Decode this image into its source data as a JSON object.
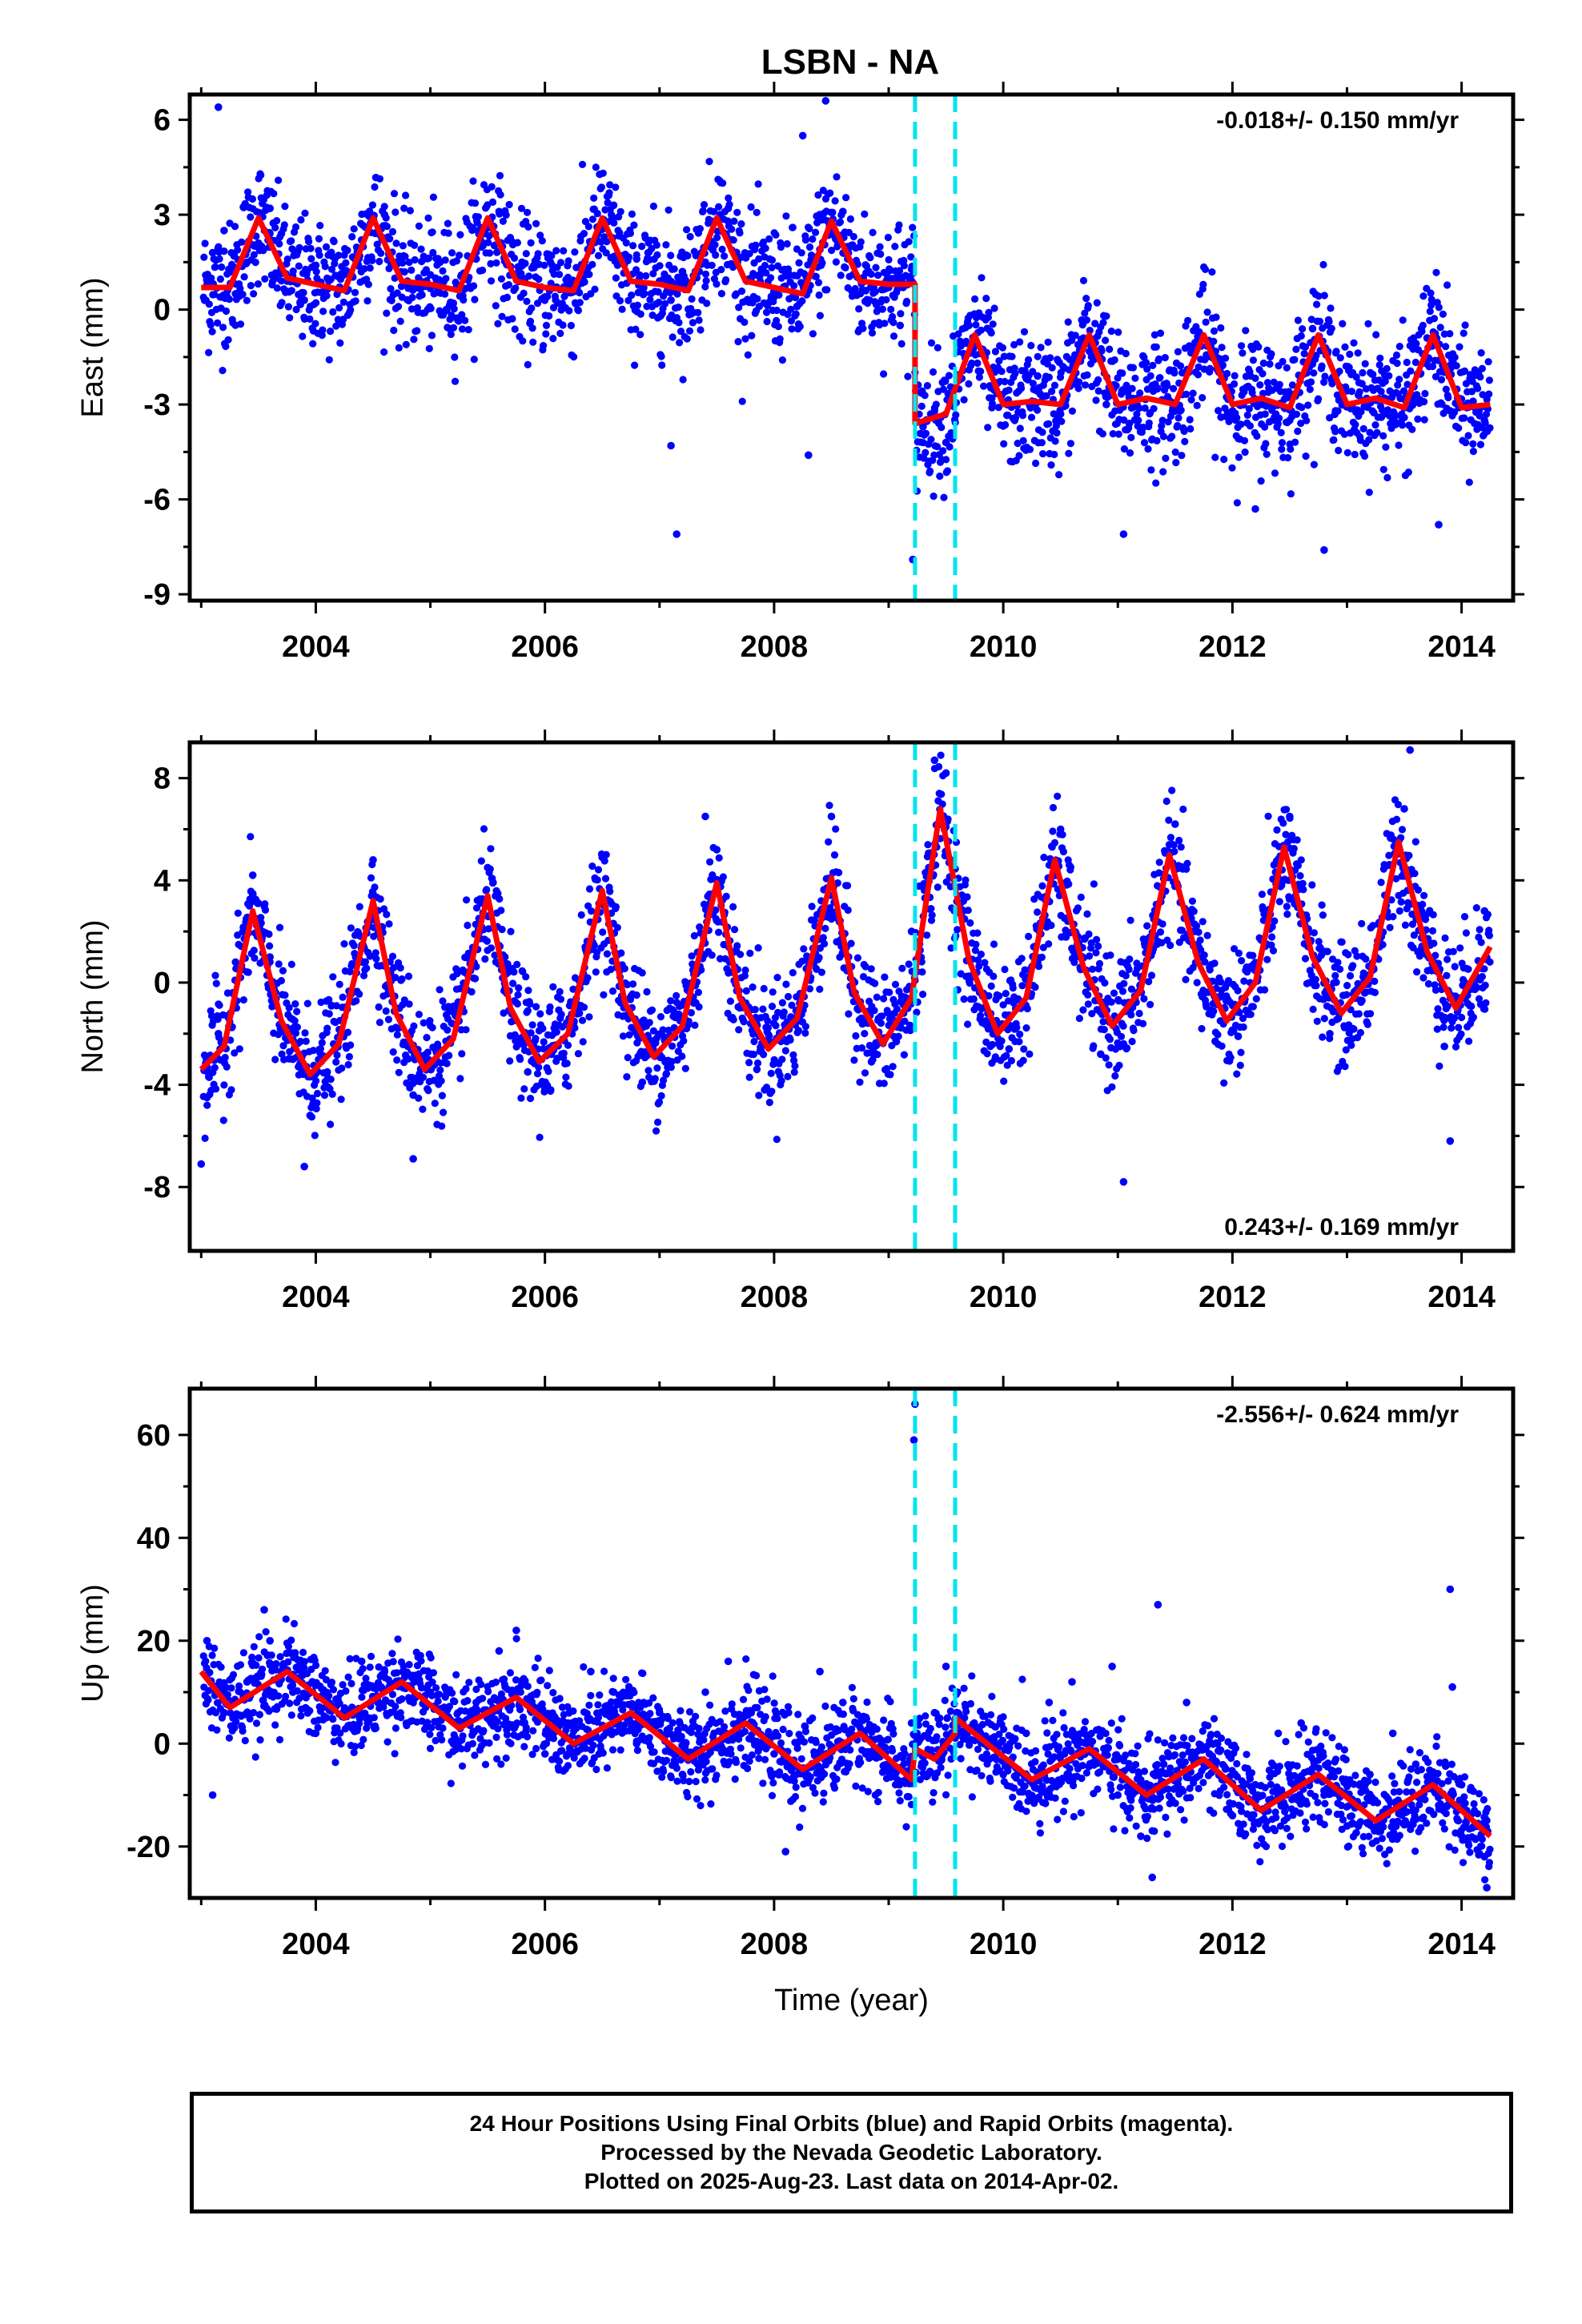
{
  "title": "LSBN - NA",
  "colors": {
    "points": "#0000ff",
    "model": "#ff0000",
    "offsets": "#00e5ee",
    "frame": "#000000"
  },
  "chart_data": [
    {
      "type": "scatter",
      "panel": "east",
      "ylabel": "East (mm)",
      "xlim": [
        2002.9,
        2014.45
      ],
      "ylim": [
        -9.2,
        6.8
      ],
      "yticks": [
        -9,
        -6,
        -3,
        0,
        3,
        6
      ],
      "xticks": [
        2004,
        2006,
        2008,
        2010,
        2012,
        2014
      ],
      "rate_label": "-0.018+/- 0.150 mm/yr",
      "rate_position": "top-right",
      "offset_epochs": [
        2009.23,
        2009.58
      ],
      "series": [
        {
          "name": "",
          "kind": "points",
          "color": "#0000ff"
        },
        {
          "name": "",
          "kind": "model",
          "color": "#ff0000",
          "x": [
            2003.0,
            2003.25,
            2003.5,
            2003.75,
            2004.0,
            2004.25,
            2004.5,
            2004.75,
            2005.0,
            2005.25,
            2005.5,
            2005.75,
            2006.0,
            2006.25,
            2006.5,
            2006.75,
            2007.0,
            2007.25,
            2007.5,
            2007.75,
            2008.0,
            2008.25,
            2008.5,
            2008.75,
            2009.0,
            2009.23,
            2009.23,
            2009.5,
            2009.75,
            2010.0,
            2010.25,
            2010.5,
            2010.75,
            2011.0,
            2011.25,
            2011.5,
            2011.75,
            2012.0,
            2012.25,
            2012.5,
            2012.75,
            2013.0,
            2013.25,
            2013.5,
            2013.75,
            2014.0,
            2014.25
          ],
          "y": [
            0.7,
            0.7,
            2.9,
            1.0,
            0.8,
            0.6,
            2.9,
            0.9,
            0.8,
            0.6,
            2.9,
            0.9,
            0.7,
            0.6,
            2.9,
            0.9,
            0.8,
            0.6,
            2.9,
            0.9,
            0.7,
            0.5,
            2.8,
            0.9,
            0.8,
            0.8,
            -3.6,
            -3.3,
            -0.8,
            -3.0,
            -2.9,
            -3.0,
            -0.8,
            -3.0,
            -2.8,
            -3.0,
            -0.8,
            -3.0,
            -2.8,
            -3.1,
            -0.8,
            -3.0,
            -2.8,
            -3.1,
            -0.8,
            -3.1,
            -3.0
          ]
        }
      ],
      "scatter": {
        "x": [
          2003.1,
          2003.2,
          2003.3,
          2003.4,
          2003.5,
          2003.6,
          2003.7,
          2003.8,
          2003.9,
          2004.0,
          2004.2,
          2004.4,
          2004.6,
          2004.8,
          2005.0,
          2005.2,
          2005.4,
          2005.6,
          2005.8,
          2006.0,
          2006.2,
          2006.4,
          2006.6,
          2006.8,
          2007.0,
          2007.1,
          2007.2,
          2007.4,
          2007.6,
          2007.8,
          2008.0,
          2008.2,
          2008.4,
          2008.6,
          2008.8,
          2009.0,
          2009.1,
          2009.2,
          2009.3,
          2009.4,
          2009.5,
          2009.7,
          2009.9,
          2010.1,
          2010.3,
          2010.5,
          2010.7,
          2010.9,
          2011.1,
          2011.3,
          2011.5,
          2011.7,
          2011.9,
          2012.1,
          2012.3,
          2012.5,
          2012.7,
          2012.9,
          2013.1,
          2013.3,
          2013.5,
          2013.7,
          2013.9,
          2014.1,
          2014.2,
          2003.15,
          2007.1,
          2007.15,
          2008.3,
          2008.45,
          2008.25,
          2009.21,
          2011.05,
          2012.8,
          2012.2,
          2013.8
        ],
        "y": [
          1.8,
          2.5,
          0.5,
          1.5,
          2.1,
          3.2,
          2.4,
          1.0,
          0.3,
          1.4,
          0.6,
          2.2,
          3.0,
          0.9,
          1.1,
          0.2,
          1.6,
          3.1,
          1.5,
          0.4,
          0.8,
          2.0,
          3.3,
          1.6,
          0.9,
          0.3,
          1.2,
          1.5,
          3.2,
          1.0,
          0.4,
          0.1,
          1.9,
          3.1,
          0.6,
          0.7,
          -0.5,
          0.9,
          -3.7,
          -3.2,
          -4.2,
          -0.5,
          -2.8,
          -3.5,
          -2.1,
          -3.3,
          -0.9,
          -3.0,
          -3.6,
          -2.4,
          -3.1,
          -0.7,
          -3.4,
          -2.6,
          -3.0,
          -3.5,
          -0.6,
          -3.2,
          -2.7,
          -3.4,
          -3.1,
          -0.9,
          -3.2,
          -2.9,
          -3.5,
          6.4,
          -4.3,
          -7.1,
          -4.6,
          6.6,
          5.5,
          -7.9,
          -7.1,
          -7.6,
          -6.3,
          -6.8
        ]
      }
    },
    {
      "type": "scatter",
      "panel": "north",
      "ylabel": "North (mm)",
      "xlim": [
        2002.9,
        2014.45
      ],
      "ylim": [
        -10.5,
        9.4
      ],
      "yticks": [
        -8,
        -4,
        0,
        4,
        8
      ],
      "xticks": [
        2004,
        2006,
        2008,
        2010,
        2012,
        2014
      ],
      "rate_label": "0.243+/- 0.169 mm/yr",
      "rate_position": "bottom-right",
      "offset_epochs": [
        2009.23,
        2009.58
      ],
      "series": [
        {
          "name": "",
          "kind": "points",
          "color": "#0000ff"
        },
        {
          "name": "",
          "kind": "model",
          "color": "#ff0000",
          "x": [
            2003.0,
            2003.2,
            2003.45,
            2003.7,
            2003.95,
            2004.2,
            2004.5,
            2004.7,
            2004.95,
            2005.2,
            2005.5,
            2005.7,
            2005.95,
            2006.2,
            2006.5,
            2006.7,
            2006.95,
            2007.2,
            2007.5,
            2007.7,
            2007.95,
            2008.2,
            2008.5,
            2008.7,
            2008.95,
            2009.2,
            2009.45,
            2009.7,
            2009.95,
            2010.2,
            2010.45,
            2010.7,
            2010.95,
            2011.2,
            2011.45,
            2011.7,
            2011.95,
            2012.2,
            2012.45,
            2012.7,
            2012.95,
            2013.2,
            2013.45,
            2013.7,
            2013.95,
            2014.25
          ],
          "y": [
            -3.4,
            -2.5,
            2.8,
            -1.5,
            -3.6,
            -2.4,
            3.2,
            -1.2,
            -3.4,
            -2.2,
            3.4,
            -1.0,
            -3.1,
            -2.0,
            3.6,
            -0.8,
            -2.9,
            -1.7,
            3.9,
            -0.6,
            -2.6,
            -1.4,
            4.1,
            -0.4,
            -2.4,
            -0.6,
            6.8,
            0.9,
            -2.0,
            -0.6,
            4.8,
            0.6,
            -1.7,
            -0.3,
            5.0,
            0.8,
            -1.5,
            0.0,
            5.3,
            1.0,
            -1.2,
            0.2,
            5.5,
            1.2,
            -1.0,
            1.4
          ]
        }
      ],
      "scatter": {
        "x": [
          2003.05,
          2003.15,
          2003.3,
          2003.45,
          2003.6,
          2003.8,
          2003.95,
          2004.1,
          2004.3,
          2004.5,
          2004.65,
          2004.85,
          2005.05,
          2005.25,
          2005.5,
          2005.65,
          2005.85,
          2006.05,
          2006.3,
          2006.5,
          2006.65,
          2006.85,
          2007.05,
          2007.3,
          2007.5,
          2007.65,
          2007.85,
          2008.05,
          2008.3,
          2008.5,
          2008.65,
          2008.85,
          2009.05,
          2009.2,
          2009.35,
          2009.5,
          2009.65,
          2009.85,
          2010.05,
          2010.3,
          2010.5,
          2010.65,
          2010.85,
          2011.05,
          2011.3,
          2011.5,
          2011.65,
          2011.85,
          2012.05,
          2012.3,
          2012.5,
          2012.65,
          2012.85,
          2013.05,
          2013.3,
          2013.5,
          2013.65,
          2013.85,
          2014.05,
          2014.2,
          2003.0,
          2003.9,
          2004.85,
          2007.4,
          2009.4,
          2011.05,
          2013.55,
          2013.9
        ],
        "y": [
          -4.5,
          -2.0,
          0.8,
          4.2,
          1.0,
          -3.0,
          -5.2,
          -3.5,
          -0.5,
          4.8,
          0.2,
          -4.4,
          -3.0,
          -1.5,
          4.5,
          1.0,
          -3.5,
          -4.2,
          -1.2,
          4.9,
          0.5,
          -3.9,
          -3.1,
          -0.8,
          5.2,
          1.2,
          -3.4,
          -2.0,
          0.4,
          6.5,
          1.0,
          -3.1,
          -1.5,
          2.0,
          4.5,
          8.2,
          2.5,
          -1.5,
          -2.6,
          0.8,
          6.0,
          1.8,
          -2.8,
          -2.4,
          1.2,
          6.2,
          2.0,
          -2.3,
          -2.1,
          1.5,
          6.5,
          2.5,
          -2.0,
          -1.8,
          1.8,
          6.8,
          2.8,
          -2.5,
          -0.5,
          2.8,
          -7.1,
          -7.2,
          -6.9,
          6.5,
          8.7,
          -7.8,
          9.1,
          -6.2
        ]
      }
    },
    {
      "type": "scatter",
      "panel": "up",
      "ylabel": "Up (mm)",
      "xlabel": "Time (year)",
      "xlim": [
        2002.9,
        2014.45
      ],
      "ylim": [
        -30,
        69
      ],
      "yticks": [
        -20,
        0,
        20,
        40,
        60
      ],
      "xticks": [
        2004,
        2006,
        2008,
        2010,
        2012,
        2014
      ],
      "rate_label": "-2.556+/- 0.624 mm/yr",
      "rate_position": "top-right",
      "offset_epochs": [
        2009.23,
        2009.58
      ],
      "series": [
        {
          "name": "",
          "kind": "points",
          "color": "#0000ff"
        },
        {
          "name": "",
          "kind": "model",
          "color": "#ff0000",
          "x": [
            2003.0,
            2003.25,
            2003.75,
            2004.25,
            2004.75,
            2005.25,
            2005.75,
            2006.25,
            2006.75,
            2007.25,
            2007.75,
            2008.25,
            2008.75,
            2009.2,
            2009.23,
            2009.4,
            2009.58,
            2009.58,
            2010.25,
            2010.75,
            2011.25,
            2011.75,
            2012.25,
            2012.75,
            2013.25,
            2013.75,
            2014.25
          ],
          "y": [
            14,
            7,
            14,
            5,
            12,
            3,
            9,
            0,
            6,
            -3,
            4,
            -5,
            2,
            -7,
            -1,
            -3,
            2,
            5,
            -7,
            -1,
            -10,
            -3,
            -13,
            -6,
            -15,
            -8,
            -18
          ]
        }
      ],
      "scatter": {
        "x": [
          2003.05,
          2003.2,
          2003.4,
          2003.6,
          2003.8,
          2004.0,
          2004.2,
          2004.4,
          2004.6,
          2004.8,
          2005.0,
          2005.2,
          2005.4,
          2005.6,
          2005.8,
          2006.0,
          2006.2,
          2006.4,
          2006.6,
          2006.8,
          2007.0,
          2007.2,
          2007.4,
          2007.6,
          2007.8,
          2008.0,
          2008.2,
          2008.4,
          2008.6,
          2008.8,
          2009.0,
          2009.2,
          2009.4,
          2009.6,
          2009.8,
          2010.0,
          2010.2,
          2010.4,
          2010.6,
          2010.8,
          2011.0,
          2011.2,
          2011.4,
          2011.6,
          2011.8,
          2012.0,
          2012.2,
          2012.4,
          2012.6,
          2012.8,
          2013.0,
          2013.2,
          2013.4,
          2013.6,
          2013.8,
          2014.0,
          2014.2,
          2003.1,
          2003.55,
          2005.75,
          2008.1,
          2009.22,
          2009.23,
          2009.5,
          2010.95,
          2011.35,
          2011.3,
          2013.9,
          2013.92,
          2014.22
        ],
        "y": [
          20,
          6,
          12,
          20,
          10,
          2,
          8,
          16,
          14,
          4,
          10,
          0,
          8,
          18,
          12,
          -2,
          4,
          14,
          10,
          0,
          6,
          -6,
          10,
          16,
          6,
          -2,
          0,
          14,
          8,
          -2,
          -4,
          4,
          6,
          10,
          2,
          -6,
          2,
          8,
          12,
          -2,
          -10,
          -18,
          -4,
          8,
          -2,
          -14,
          -8,
          2,
          4,
          -10,
          -16,
          -6,
          2,
          -4,
          -12,
          -8,
          -22,
          -10,
          26,
          22,
          -21,
          59,
          66,
          15,
          15,
          27,
          -26,
          30,
          11,
          -28
        ]
      }
    }
  ],
  "footer": {
    "line1": "24 Hour Positions Using Final Orbits (blue) and Rapid Orbits (magenta).",
    "line2": "Processed by the Nevada Geodetic Laboratory.",
    "line3": "Plotted on 2025-Aug-23. Last data on 2014-Apr-02."
  }
}
